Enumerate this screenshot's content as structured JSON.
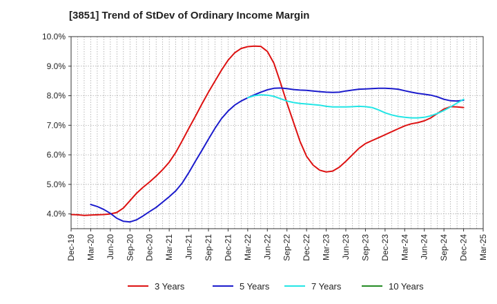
{
  "chart_data": {
    "type": "line",
    "title": "[3851]  Trend of StDev of Ordinary Income Margin",
    "xlabel": "",
    "ylabel": "",
    "x_ticks": [
      "Dec-19",
      "Mar-20",
      "Jun-20",
      "Sep-20",
      "Dec-20",
      "Mar-21",
      "Jun-21",
      "Sep-21",
      "Dec-21",
      "Mar-22",
      "Jun-22",
      "Sep-22",
      "Dec-22",
      "Mar-23",
      "Jun-23",
      "Sep-23",
      "Dec-23",
      "Mar-24",
      "Jun-24",
      "Sep-24",
      "Dec-24",
      "Mar-25"
    ],
    "y_ticks": [
      "4.0%",
      "5.0%",
      "6.0%",
      "7.0%",
      "8.0%",
      "9.0%",
      "10.0%"
    ],
    "y_tick_values": [
      4.0,
      5.0,
      6.0,
      7.0,
      8.0,
      9.0,
      10.0
    ],
    "ylim": [
      3.5,
      10.0
    ],
    "grid": true,
    "legend_position": "bottom",
    "series": [
      {
        "name": "3 Years",
        "color": "#dd1111",
        "x": [
          "Dec-19",
          "Jan-20",
          "Feb-20",
          "Mar-20",
          "Apr-20",
          "May-20",
          "Jun-20",
          "Jul-20",
          "Aug-20",
          "Sep-20",
          "Oct-20",
          "Nov-20",
          "Dec-20",
          "Jan-21",
          "Feb-21",
          "Mar-21",
          "Apr-21",
          "May-21",
          "Jun-21",
          "Jul-21",
          "Aug-21",
          "Sep-21",
          "Oct-21",
          "Nov-21",
          "Dec-21",
          "Jan-22",
          "Feb-22",
          "Mar-22",
          "Apr-22",
          "May-22",
          "Jun-22",
          "Jul-22",
          "Aug-22",
          "Sep-22",
          "Oct-22",
          "Nov-22",
          "Dec-22",
          "Jan-23",
          "Feb-23",
          "Mar-23",
          "Apr-23",
          "May-23",
          "Jun-23",
          "Jul-23",
          "Aug-23",
          "Sep-23",
          "Oct-23",
          "Nov-23",
          "Dec-23",
          "Jan-24",
          "Feb-24",
          "Mar-24",
          "Apr-24",
          "May-24",
          "Jun-24",
          "Jul-24",
          "Aug-24",
          "Sep-24",
          "Oct-24",
          "Nov-24",
          "Dec-24"
        ],
        "values": [
          3.98,
          3.97,
          3.95,
          3.96,
          3.97,
          3.98,
          4.0,
          4.05,
          4.2,
          4.45,
          4.7,
          4.9,
          5.08,
          5.28,
          5.5,
          5.75,
          6.08,
          6.48,
          6.9,
          7.3,
          7.72,
          8.12,
          8.5,
          8.87,
          9.2,
          9.45,
          9.6,
          9.66,
          9.68,
          9.67,
          9.5,
          9.1,
          8.45,
          7.75,
          7.1,
          6.45,
          5.95,
          5.65,
          5.48,
          5.42,
          5.45,
          5.58,
          5.78,
          6.0,
          6.22,
          6.38,
          6.48,
          6.58,
          6.68,
          6.78,
          6.88,
          6.98,
          7.05,
          7.09,
          7.15,
          7.25,
          7.4,
          7.55,
          7.63,
          7.62,
          7.6
        ]
      },
      {
        "name": "5 Years",
        "color": "#1a1acc",
        "x": [
          "Mar-20",
          "Apr-20",
          "May-20",
          "Jun-20",
          "Jul-20",
          "Aug-20",
          "Sep-20",
          "Oct-20",
          "Nov-20",
          "Dec-20",
          "Jan-21",
          "Feb-21",
          "Mar-21",
          "Apr-21",
          "May-21",
          "Jun-21",
          "Jul-21",
          "Aug-21",
          "Sep-21",
          "Oct-21",
          "Nov-21",
          "Dec-21",
          "Jan-22",
          "Feb-22",
          "Mar-22",
          "Apr-22",
          "May-22",
          "Jun-22",
          "Jul-22",
          "Aug-22",
          "Sep-22",
          "Oct-22",
          "Nov-22",
          "Dec-22",
          "Jan-23",
          "Feb-23",
          "Mar-23",
          "Apr-23",
          "May-23",
          "Jun-23",
          "Jul-23",
          "Aug-23",
          "Sep-23",
          "Oct-23",
          "Nov-23",
          "Dec-23",
          "Jan-24",
          "Feb-24",
          "Mar-24",
          "Apr-24",
          "May-24",
          "Jun-24",
          "Jul-24",
          "Aug-24",
          "Sep-24",
          "Oct-24",
          "Nov-24",
          "Dec-24"
        ],
        "values": [
          4.32,
          4.25,
          4.15,
          4.02,
          3.85,
          3.75,
          3.73,
          3.8,
          3.93,
          4.08,
          4.22,
          4.4,
          4.58,
          4.78,
          5.05,
          5.4,
          5.78,
          6.15,
          6.53,
          6.9,
          7.23,
          7.48,
          7.68,
          7.82,
          7.93,
          8.03,
          8.12,
          8.2,
          8.25,
          8.26,
          8.24,
          8.21,
          8.19,
          8.18,
          8.16,
          8.14,
          8.12,
          8.11,
          8.12,
          8.16,
          8.19,
          8.22,
          8.23,
          8.24,
          8.25,
          8.25,
          8.24,
          8.22,
          8.17,
          8.12,
          8.08,
          8.05,
          8.02,
          7.96,
          7.88,
          7.83,
          7.82,
          7.85
        ]
      },
      {
        "name": "7 Years",
        "color": "#22e5e5",
        "x": [
          "Mar-22",
          "Apr-22",
          "May-22",
          "Jun-22",
          "Jul-22",
          "Aug-22",
          "Sep-22",
          "Oct-22",
          "Nov-22",
          "Dec-22",
          "Jan-23",
          "Feb-23",
          "Mar-23",
          "Apr-23",
          "May-23",
          "Jun-23",
          "Jul-23",
          "Aug-23",
          "Sep-23",
          "Oct-23",
          "Nov-23",
          "Dec-23",
          "Jan-24",
          "Feb-24",
          "Mar-24",
          "Apr-24",
          "May-24",
          "Jun-24",
          "Jul-24",
          "Aug-24",
          "Sep-24",
          "Oct-24",
          "Nov-24",
          "Dec-24"
        ],
        "values": [
          7.93,
          8.0,
          8.03,
          8.02,
          7.98,
          7.9,
          7.82,
          7.77,
          7.74,
          7.72,
          7.7,
          7.68,
          7.64,
          7.62,
          7.62,
          7.62,
          7.63,
          7.64,
          7.63,
          7.6,
          7.52,
          7.42,
          7.35,
          7.3,
          7.27,
          7.25,
          7.25,
          7.27,
          7.32,
          7.4,
          7.5,
          7.62,
          7.75,
          7.88
        ]
      },
      {
        "name": "10 Years",
        "color": "#228b22",
        "x": [],
        "values": []
      }
    ]
  }
}
